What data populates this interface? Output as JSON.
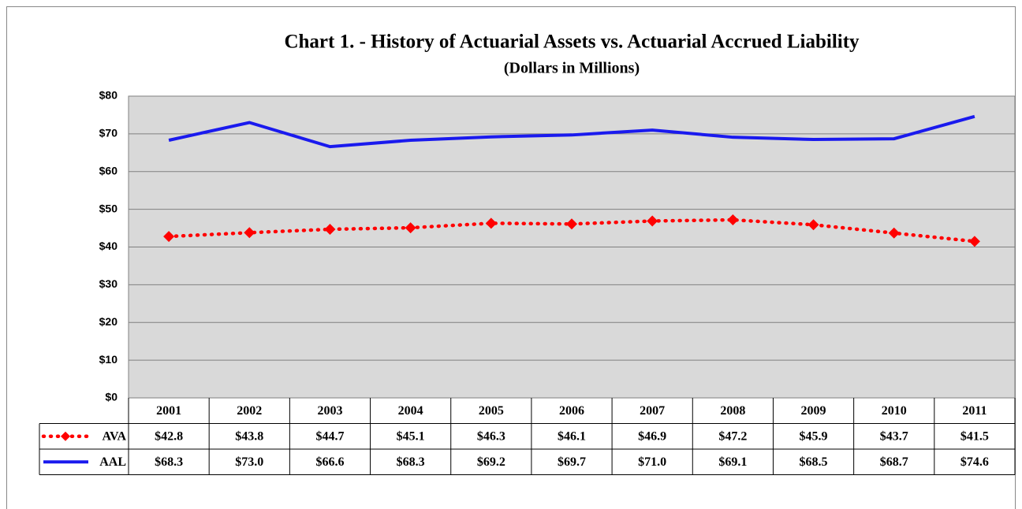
{
  "chart_data": {
    "type": "line",
    "title": "Chart 1. - History of Actuarial Assets vs. Actuarial Accrued Liability",
    "subtitle": "(Dollars in Millions)",
    "categories": [
      "2001",
      "2002",
      "2003",
      "2004",
      "2005",
      "2006",
      "2007",
      "2008",
      "2009",
      "2010",
      "2011"
    ],
    "series": [
      {
        "name": "AVA",
        "color": "#ff0000",
        "style": "dotted",
        "marker": "diamond",
        "values": [
          42.8,
          43.8,
          44.7,
          45.1,
          46.3,
          46.1,
          46.9,
          47.2,
          45.9,
          43.7,
          41.5
        ],
        "value_labels": [
          "$42.8",
          "$43.8",
          "$44.7",
          "$45.1",
          "$46.3",
          "$46.1",
          "$46.9",
          "$47.2",
          "$45.9",
          "$43.7",
          "$41.5"
        ]
      },
      {
        "name": "AAL",
        "color": "#1a1aee",
        "style": "solid",
        "marker": "none",
        "values": [
          68.3,
          73.0,
          66.6,
          68.3,
          69.2,
          69.7,
          71.0,
          69.1,
          68.5,
          68.7,
          74.6
        ],
        "value_labels": [
          "$68.3",
          "$73.0",
          "$66.6",
          "$68.3",
          "$69.2",
          "$69.7",
          "$71.0",
          "$69.1",
          "$68.5",
          "$68.7",
          "$74.6"
        ]
      }
    ],
    "ylim": [
      0,
      80
    ],
    "yticks": [
      {
        "value": 0,
        "label": "$0"
      },
      {
        "value": 10,
        "label": "$10"
      },
      {
        "value": 20,
        "label": "$20"
      },
      {
        "value": 30,
        "label": "$30"
      },
      {
        "value": 40,
        "label": "$40"
      },
      {
        "value": 50,
        "label": "$50"
      },
      {
        "value": 60,
        "label": "$60"
      },
      {
        "value": 70,
        "label": "$70"
      },
      {
        "value": 80,
        "label": "$80"
      }
    ],
    "grid": true
  }
}
